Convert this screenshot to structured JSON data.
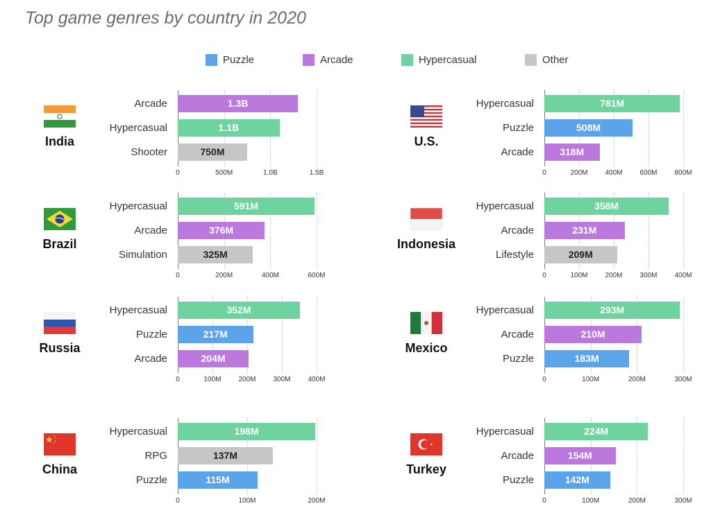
{
  "title": "Top game genres by country in 2020",
  "colors": {
    "Puzzle": "#5ba4ea",
    "Arcade": "#bb79de",
    "Hypercasual": "#6fd3a0",
    "Other": "#c6c6c6"
  },
  "legend": [
    "Puzzle",
    "Arcade",
    "Hypercasual",
    "Other"
  ],
  "chart_data": [
    {
      "type": "bar",
      "country": "India",
      "flag": "india-flag",
      "categories": [
        "Arcade",
        "Hypercasual",
        "Shooter"
      ],
      "values": [
        1300000000,
        1100000000,
        750000000
      ],
      "labels": [
        "1.3B",
        "1.1B",
        "750M"
      ],
      "genre_group": [
        "Arcade",
        "Hypercasual",
        "Other"
      ],
      "xlim": [
        0,
        1500000000
      ],
      "ticks": [
        0,
        500000000,
        1000000000,
        1500000000
      ],
      "tick_labels": [
        "0",
        "500M",
        "1.0B",
        "1.5B"
      ]
    },
    {
      "type": "bar",
      "country": "U.S.",
      "flag": "us-flag",
      "categories": [
        "Hypercasual",
        "Puzzle",
        "Arcade"
      ],
      "values": [
        781000000,
        508000000,
        318000000
      ],
      "labels": [
        "781M",
        "508M",
        "318M"
      ],
      "genre_group": [
        "Hypercasual",
        "Puzzle",
        "Arcade"
      ],
      "xlim": [
        0,
        800000000
      ],
      "ticks": [
        0,
        200000000,
        400000000,
        600000000,
        800000000
      ],
      "tick_labels": [
        "0",
        "200M",
        "400M",
        "600M",
        "800M"
      ]
    },
    {
      "type": "bar",
      "country": "Brazil",
      "flag": "brazil-flag",
      "categories": [
        "Hypercasual",
        "Arcade",
        "Simulation"
      ],
      "values": [
        591000000,
        376000000,
        325000000
      ],
      "labels": [
        "591M",
        "376M",
        "325M"
      ],
      "genre_group": [
        "Hypercasual",
        "Arcade",
        "Other"
      ],
      "xlim": [
        0,
        600000000
      ],
      "ticks": [
        0,
        200000000,
        400000000,
        600000000
      ],
      "tick_labels": [
        "0",
        "200M",
        "400M",
        "600M"
      ]
    },
    {
      "type": "bar",
      "country": "Indonesia",
      "flag": "indonesia-flag",
      "categories": [
        "Hypercasual",
        "Arcade",
        "Lifestyle"
      ],
      "values": [
        358000000,
        231000000,
        209000000
      ],
      "labels": [
        "358M",
        "231M",
        "209M"
      ],
      "genre_group": [
        "Hypercasual",
        "Arcade",
        "Other"
      ],
      "xlim": [
        0,
        400000000
      ],
      "ticks": [
        0,
        100000000,
        200000000,
        300000000,
        400000000
      ],
      "tick_labels": [
        "0",
        "100M",
        "200M",
        "300M",
        "400M"
      ]
    },
    {
      "type": "bar",
      "country": "Russia",
      "flag": "russia-flag",
      "categories": [
        "Hypercasual",
        "Puzzle",
        "Arcade"
      ],
      "values": [
        352000000,
        217000000,
        204000000
      ],
      "labels": [
        "352M",
        "217M",
        "204M"
      ],
      "genre_group": [
        "Hypercasual",
        "Puzzle",
        "Arcade"
      ],
      "xlim": [
        0,
        400000000
      ],
      "ticks": [
        0,
        100000000,
        200000000,
        300000000,
        400000000
      ],
      "tick_labels": [
        "0",
        "100M",
        "200M",
        "300M",
        "400M"
      ]
    },
    {
      "type": "bar",
      "country": "Mexico",
      "flag": "mexico-flag",
      "categories": [
        "Hypercasual",
        "Arcade",
        "Puzzle"
      ],
      "values": [
        293000000,
        210000000,
        183000000
      ],
      "labels": [
        "293M",
        "210M",
        "183M"
      ],
      "genre_group": [
        "Hypercasual",
        "Arcade",
        "Puzzle"
      ],
      "xlim": [
        0,
        300000000
      ],
      "ticks": [
        0,
        100000000,
        200000000,
        300000000
      ],
      "tick_labels": [
        "0",
        "100M",
        "200M",
        "300M"
      ]
    },
    {
      "type": "bar",
      "country": "China",
      "flag": "china-flag",
      "categories": [
        "Hypercasual",
        "RPG",
        "Puzzle"
      ],
      "values": [
        198000000,
        137000000,
        115000000
      ],
      "labels": [
        "198M",
        "137M",
        "115M"
      ],
      "genre_group": [
        "Hypercasual",
        "Other",
        "Puzzle"
      ],
      "xlim": [
        0,
        200000000
      ],
      "ticks": [
        0,
        100000000,
        200000000
      ],
      "tick_labels": [
        "0",
        "100M",
        "200M"
      ]
    },
    {
      "type": "bar",
      "country": "Turkey",
      "flag": "turkey-flag",
      "categories": [
        "Hypercasual",
        "Arcade",
        "Puzzle"
      ],
      "values": [
        224000000,
        154000000,
        142000000
      ],
      "labels": [
        "224M",
        "154M",
        "142M"
      ],
      "genre_group": [
        "Hypercasual",
        "Arcade",
        "Puzzle"
      ],
      "xlim": [
        0,
        300000000
      ],
      "ticks": [
        0,
        100000000,
        200000000,
        300000000
      ],
      "tick_labels": [
        "0",
        "100M",
        "200M",
        "300M"
      ]
    }
  ]
}
